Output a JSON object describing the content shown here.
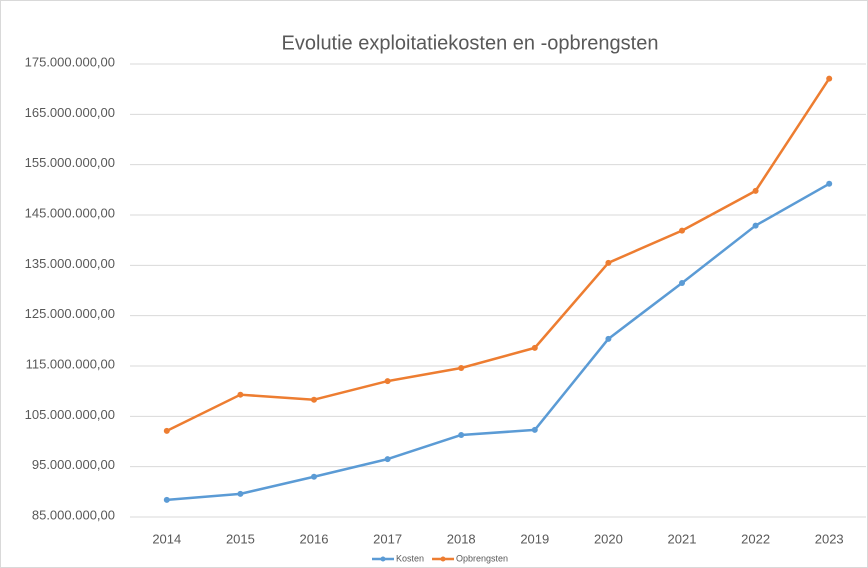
{
  "chart_data": {
    "type": "line",
    "title": "Evolutie exploitatiekosten en -opbrengsten",
    "categories": [
      "2014",
      "2015",
      "2016",
      "2017",
      "2018",
      "2019",
      "2020",
      "2021",
      "2022",
      "2023"
    ],
    "series": [
      {
        "name": "Kosten",
        "color": "#5b9bd5",
        "values": [
          88400000,
          89600000,
          93000000,
          96500000,
          101300000,
          102300000,
          120400000,
          131500000,
          142900000,
          151200000
        ]
      },
      {
        "name": "Opbrengsten",
        "color": "#ed7d31",
        "values": [
          102100000,
          109300000,
          108300000,
          112000000,
          114600000,
          118600000,
          135500000,
          141900000,
          149800000,
          172100000
        ]
      }
    ],
    "ylim": [
      85000000,
      175000000
    ],
    "yticks": [
      {
        "value": 85000000,
        "label": "85.000.000,00"
      },
      {
        "value": 95000000,
        "label": "95.000.000,00"
      },
      {
        "value": 105000000,
        "label": "105.000.000,00"
      },
      {
        "value": 115000000,
        "label": "115.000.000,00"
      },
      {
        "value": 125000000,
        "label": "125.000.000,00"
      },
      {
        "value": 135000000,
        "label": "135.000.000,00"
      },
      {
        "value": 145000000,
        "label": "145.000.000,00"
      },
      {
        "value": 155000000,
        "label": "155.000.000,00"
      },
      {
        "value": 165000000,
        "label": "165.000.000,00"
      },
      {
        "value": 175000000,
        "label": "175.000.000,00"
      }
    ],
    "grid": true,
    "legend": "bottom"
  }
}
